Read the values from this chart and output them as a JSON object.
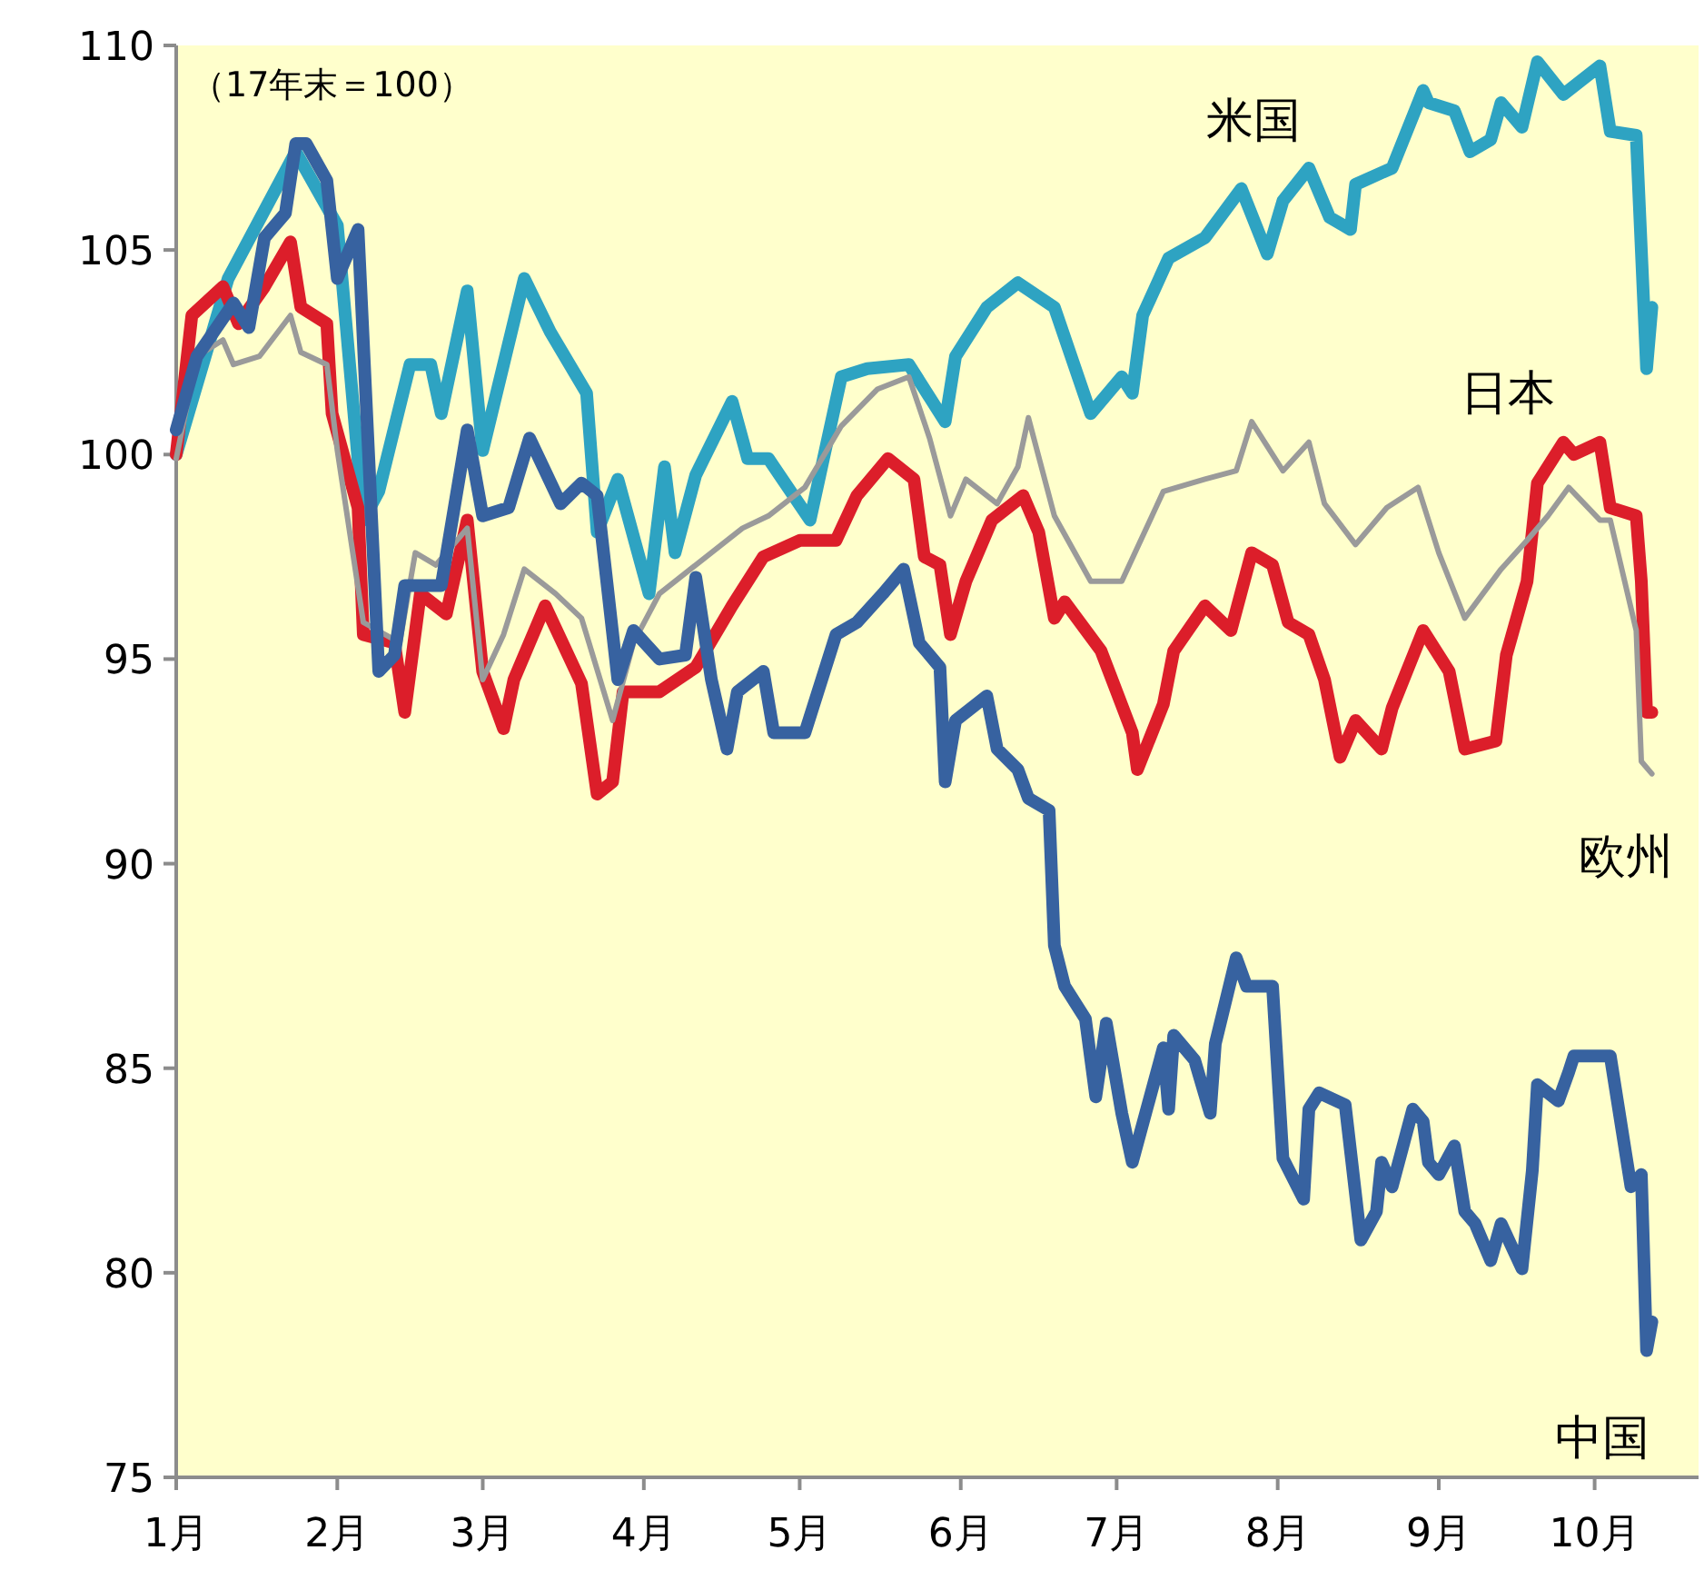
{
  "chart_data": {
    "type": "line",
    "annotations": [
      "（17年末＝100）"
    ],
    "xlim": [
      "--01-01",
      "--10-21"
    ],
    "xticks": [
      {
        "value": "--01-01",
        "label": "1月"
      },
      {
        "value": "--02-01",
        "label": "2月"
      },
      {
        "value": "--03-01",
        "label": "3月"
      },
      {
        "value": "--04-01",
        "label": "4月"
      },
      {
        "value": "--05-01",
        "label": "5月"
      },
      {
        "value": "--06-01",
        "label": "6月"
      },
      {
        "value": "--07-01",
        "label": "7月"
      },
      {
        "value": "--08-01",
        "label": "8月"
      },
      {
        "value": "--09-01",
        "label": "9月"
      },
      {
        "value": "--10-01",
        "label": "10月"
      }
    ],
    "ylim": [
      75,
      110
    ],
    "yticks": [
      75,
      80,
      85,
      90,
      95,
      100,
      105,
      110
    ],
    "series": [
      {
        "name": "米国",
        "color": "#2ea3c2",
        "x": [
          "--01-01",
          "--01-11",
          "--01-24",
          "--02-01",
          "--02-06",
          "--02-09",
          "--02-15",
          "--02-19",
          "--02-21",
          "--02-26",
          "--03-01",
          "--03-09",
          "--03-14",
          "--03-21",
          "--03-23",
          "--03-27",
          "--04-02",
          "--04-05",
          "--04-07",
          "--04-11",
          "--04-18",
          "--04-21",
          "--04-25",
          "--05-03",
          "--05-09",
          "--05-14",
          "--05-22",
          "--05-29",
          "--05-31",
          "--06-06",
          "--06-12",
          "--06-19",
          "--06-26",
          "--07-02",
          "--07-04",
          "--07-06",
          "--07-11",
          "--07-18",
          "--07-25",
          "--07-30",
          "--08-02",
          "--08-07",
          "--08-11",
          "--08-15",
          "--08-16",
          "--08-23",
          "--08-29",
          "--08-30",
          "--09-04",
          "--09-07",
          "--09-11",
          "--09-13",
          "--09-17",
          "--09-20",
          "--09-25",
          "--10-02",
          "--10-04",
          "--10-09",
          "--10-11",
          "--10-12"
        ],
        "values": [
          100.0,
          104.3,
          107.4,
          105.6,
          98.4,
          99.1,
          102.2,
          102.2,
          101.0,
          104.0,
          100.1,
          104.3,
          103.0,
          101.5,
          98.1,
          99.4,
          96.6,
          99.7,
          97.6,
          99.5,
          101.3,
          99.9,
          99.9,
          98.4,
          101.9,
          102.1,
          102.2,
          100.8,
          102.4,
          103.6,
          104.2,
          103.6,
          101.0,
          101.9,
          101.5,
          103.4,
          104.8,
          105.3,
          106.5,
          104.9,
          106.2,
          107.0,
          105.8,
          105.5,
          106.6,
          107.0,
          108.9,
          108.6,
          108.4,
          107.4,
          107.7,
          108.6,
          108.0,
          109.6,
          108.8,
          109.5,
          107.9,
          107.8,
          102.1,
          103.6
        ]
      },
      {
        "name": "日本",
        "color": "#dc1e2a",
        "x": [
          "--01-01",
          "--01-04",
          "--01-10",
          "--01-13",
          "--01-18",
          "--01-23",
          "--01-25",
          "--01-30",
          "--01-31",
          "--02-05",
          "--02-06",
          "--02-12",
          "--02-14",
          "--02-17",
          "--02-22",
          "--02-26",
          "--03-01",
          "--03-05",
          "--03-07",
          "--03-13",
          "--03-20",
          "--03-23",
          "--03-26",
          "--03-28",
          "--04-04",
          "--04-11",
          "--04-18",
          "--04-24",
          "--05-01",
          "--05-08",
          "--05-12",
          "--05-18",
          "--05-23",
          "--05-25",
          "--05-28",
          "--05-30",
          "--06-02",
          "--06-07",
          "--06-13",
          "--06-16",
          "--06-19",
          "--06-21",
          "--06-28",
          "--07-04",
          "--07-05",
          "--07-10",
          "--07-12",
          "--07-18",
          "--07-23",
          "--07-27",
          "--07-31",
          "--08-03",
          "--08-07",
          "--08-10",
          "--08-13",
          "--08-16",
          "--08-21",
          "--08-23",
          "--08-29",
          "--09-03",
          "--09-06",
          "--09-12",
          "--09-14",
          "--09-18",
          "--09-20",
          "--09-25",
          "--09-27",
          "--10-02",
          "--10-04",
          "--10-09",
          "--10-10",
          "--10-11",
          "--10-12"
        ],
        "values": [
          100.0,
          103.4,
          104.1,
          103.2,
          104.1,
          105.2,
          103.6,
          103.2,
          101.0,
          98.7,
          95.6,
          95.4,
          93.7,
          96.6,
          96.1,
          98.4,
          94.7,
          93.3,
          94.5,
          96.3,
          94.4,
          91.7,
          92.0,
          94.2,
          94.2,
          94.8,
          96.3,
          97.5,
          97.9,
          97.9,
          99.0,
          99.9,
          99.4,
          97.5,
          97.3,
          95.6,
          96.9,
          98.4,
          99.0,
          98.1,
          96.0,
          96.4,
          95.2,
          93.2,
          92.3,
          93.9,
          95.2,
          96.3,
          95.7,
          97.6,
          97.3,
          95.9,
          95.6,
          94.5,
          92.6,
          93.5,
          92.8,
          93.8,
          95.7,
          94.7,
          92.8,
          93.0,
          95.1,
          96.9,
          99.3,
          100.3,
          100.0,
          100.3,
          98.7,
          98.5,
          96.9,
          93.7,
          93.7
        ]
      },
      {
        "name": "欧州",
        "color": "#9a9a9a",
        "x": [
          "--01-01",
          "--01-05",
          "--01-10",
          "--01-12",
          "--01-17",
          "--01-23",
          "--01-25",
          "--01-30",
          "--02-01",
          "--02-06",
          "--02-13",
          "--02-16",
          "--02-20",
          "--02-26",
          "--03-01",
          "--03-05",
          "--03-09",
          "--03-15",
          "--03-20",
          "--03-26",
          "--03-30",
          "--04-04",
          "--04-11",
          "--04-20",
          "--04-25",
          "--05-02",
          "--05-09",
          "--05-16",
          "--05-22",
          "--05-26",
          "--05-30",
          "--06-02",
          "--06-08",
          "--06-12",
          "--06-14",
          "--06-19",
          "--06-26",
          "--07-02",
          "--07-10",
          "--07-18",
          "--07-24",
          "--07-27",
          "--08-02",
          "--08-07",
          "--08-10",
          "--08-16",
          "--08-22",
          "--08-28",
          "--09-01",
          "--09-06",
          "--09-13",
          "--09-18",
          "--09-22",
          "--09-26",
          "--10-02",
          "--10-04",
          "--10-09",
          "--10-10",
          "--10-12"
        ],
        "values": [
          99.9,
          102.4,
          102.8,
          102.2,
          102.4,
          103.4,
          102.5,
          102.2,
          100.1,
          95.9,
          95.4,
          97.6,
          97.3,
          98.2,
          94.5,
          95.6,
          97.2,
          96.6,
          96.0,
          93.5,
          95.4,
          96.6,
          97.3,
          98.2,
          98.5,
          99.2,
          100.7,
          101.6,
          101.9,
          100.4,
          98.5,
          99.4,
          98.8,
          99.7,
          100.9,
          98.5,
          96.9,
          96.9,
          99.1,
          99.4,
          99.6,
          100.8,
          99.6,
          100.3,
          98.8,
          97.8,
          98.7,
          99.2,
          97.6,
          96.0,
          97.2,
          97.9,
          98.5,
          99.2,
          98.4,
          98.4,
          95.7,
          92.5,
          92.2
        ]
      },
      {
        "name": "中国",
        "color": "#3762a0",
        "x": [
          "--01-01",
          "--01-05",
          "--01-12",
          "--01-15",
          "--01-18",
          "--01-22",
          "--01-24",
          "--01-26",
          "--01-30",
          "--02-01",
          "--02-05",
          "--02-09",
          "--02-12",
          "--02-14",
          "--02-21",
          "--02-26",
          "--03-01",
          "--03-06",
          "--03-10",
          "--03-16",
          "--03-20",
          "--03-23",
          "--03-27",
          "--03-30",
          "--04-04",
          "--04-09",
          "--04-11",
          "--04-14",
          "--04-17",
          "--04-19",
          "--04-24",
          "--04-26",
          "--05-02",
          "--05-08",
          "--05-12",
          "--05-17",
          "--05-21",
          "--05-24",
          "--05-28",
          "--05-29",
          "--05-31",
          "--06-06",
          "--06-08",
          "--06-12",
          "--06-14",
          "--06-18",
          "--06-19",
          "--06-21",
          "--06-25",
          "--06-27",
          "--06-29",
          "--07-02",
          "--07-04",
          "--07-10",
          "--07-11",
          "--07-12",
          "--07-16",
          "--07-19",
          "--07-20",
          "--07-24",
          "--07-26",
          "--07-31",
          "--08-02",
          "--08-06",
          "--08-07",
          "--08-09",
          "--08-14",
          "--08-17",
          "--08-20",
          "--08-21",
          "--08-23",
          "--08-27",
          "--08-29",
          "--08-30",
          "--09-01",
          "--09-04",
          "--09-06",
          "--09-08",
          "--09-11",
          "--09-13",
          "--09-17",
          "--09-19",
          "--09-20",
          "--09-24",
          "--09-26",
          "--09-27",
          "--10-04",
          "--10-08",
          "--10-10",
          "--10-11",
          "--10-12"
        ],
        "values": [
          100.6,
          102.4,
          103.7,
          103.1,
          105.3,
          105.9,
          107.6,
          107.6,
          106.7,
          104.3,
          105.5,
          94.7,
          95.1,
          96.8,
          96.8,
          100.6,
          98.5,
          98.7,
          100.4,
          98.8,
          99.3,
          99.0,
          94.5,
          95.7,
          95.0,
          95.1,
          97.0,
          94.5,
          92.8,
          94.2,
          94.7,
          93.2,
          93.2,
          95.6,
          95.9,
          96.6,
          97.2,
          95.4,
          94.8,
          92.0,
          93.5,
          94.1,
          92.8,
          92.3,
          91.6,
          91.3,
          88.0,
          87.0,
          86.2,
          84.3,
          86.1,
          83.9,
          82.7,
          85.5,
          84.0,
          85.8,
          85.2,
          83.9,
          85.6,
          87.7,
          87.0,
          87.0,
          82.8,
          81.8,
          84.0,
          84.4,
          84.1,
          80.8,
          81.5,
          82.7,
          82.1,
          84.0,
          83.7,
          82.7,
          82.4,
          83.1,
          81.5,
          81.2,
          80.3,
          81.2,
          80.1,
          82.5,
          84.6,
          84.2,
          84.9,
          85.3,
          85.3,
          82.1,
          82.4,
          78.1,
          78.8
        ]
      }
    ]
  }
}
